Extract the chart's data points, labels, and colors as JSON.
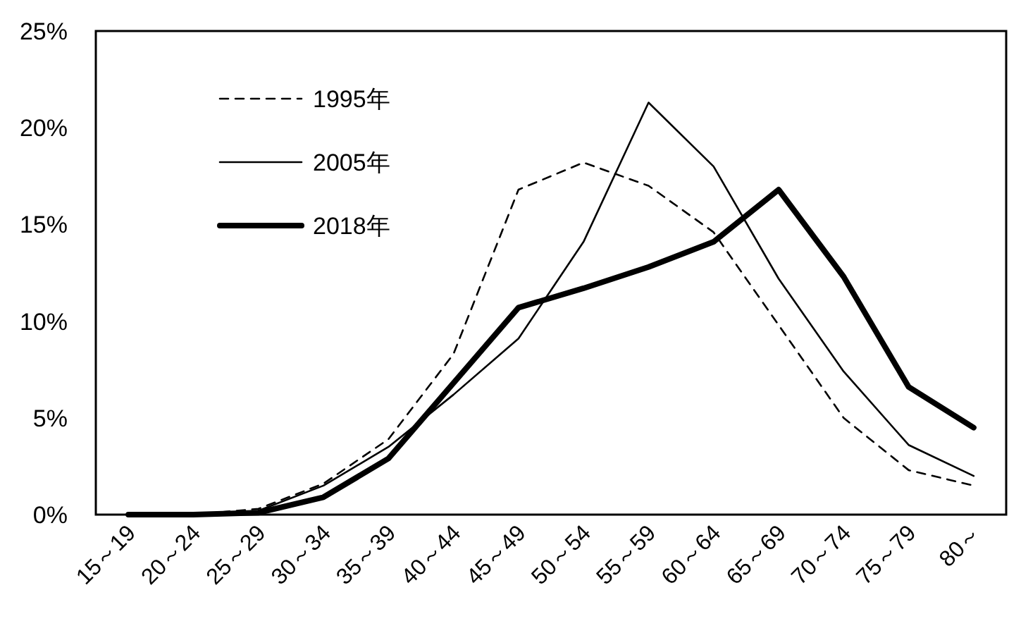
{
  "chart_data": {
    "type": "line",
    "categories": [
      "15～19",
      "20～24",
      "25～29",
      "30～34",
      "35～39",
      "40～44",
      "45～49",
      "50～54",
      "55～59",
      "60～64",
      "65～69",
      "70～74",
      "75～79",
      "80～"
    ],
    "series": [
      {
        "name": "1995年",
        "color": "#000000",
        "line_style": "dashed",
        "values": [
          0,
          0,
          0.3,
          1.6,
          3.9,
          8.3,
          16.8,
          18.2,
          17.0,
          14.6,
          9.8,
          5.0,
          2.3,
          1.5
        ]
      },
      {
        "name": "2005年",
        "color": "#000000",
        "line_style": "solid",
        "values": [
          0,
          0,
          0.2,
          1.5,
          3.5,
          6.2,
          9.1,
          14.1,
          21.3,
          18.0,
          12.2,
          7.4,
          3.6,
          2.0
        ]
      },
      {
        "name": "2018年",
        "color": "#000000",
        "line_style": "solid",
        "values": [
          0,
          0,
          0.1,
          0.9,
          2.9,
          6.8,
          10.7,
          11.7,
          12.8,
          14.1,
          16.8,
          12.3,
          6.6,
          4.5
        ]
      }
    ],
    "ylim": [
      0,
      25
    ],
    "yticks": [
      {
        "value": 0,
        "label": "0%"
      },
      {
        "value": 5,
        "label": "5%"
      },
      {
        "value": 10,
        "label": "10%"
      },
      {
        "value": 15,
        "label": "15%"
      },
      {
        "value": 20,
        "label": "20%"
      },
      {
        "value": 25,
        "label": "25%"
      }
    ],
    "grid": false,
    "legend": "top left",
    "marker": "none"
  }
}
